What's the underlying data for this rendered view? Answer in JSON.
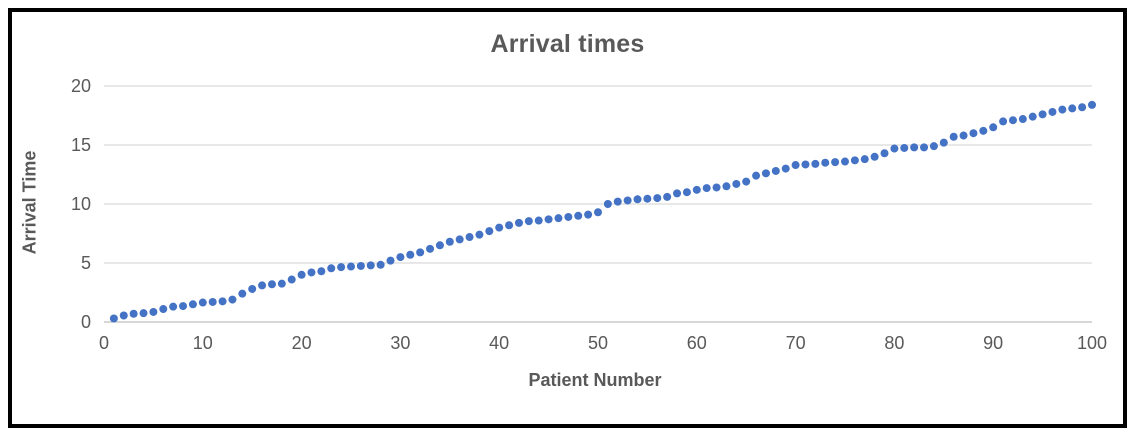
{
  "colors": {
    "title": "#595959",
    "axis_label": "#595959",
    "tick_label": "#595959",
    "gridline": "#D9D9D9",
    "baseline": "#BFBFBF",
    "frame_border": "#000000",
    "marker": "#4472C4",
    "background": "#FFFFFF"
  },
  "chart_data": {
    "type": "scatter",
    "title": "Arrival times",
    "xlabel": "Patient Number",
    "ylabel": "Arrival Time",
    "xlim": [
      0,
      100
    ],
    "ylim": [
      0,
      20
    ],
    "xticks": [
      0,
      10,
      20,
      30,
      40,
      50,
      60,
      70,
      80,
      90,
      100
    ],
    "yticks": [
      0,
      5,
      10,
      15,
      20
    ],
    "grid": "horizontal",
    "legend": "none",
    "marker_color": "#4472C4",
    "marker_size": 4,
    "x": [
      1,
      2,
      3,
      4,
      5,
      6,
      7,
      8,
      9,
      10,
      11,
      12,
      13,
      14,
      15,
      16,
      17,
      18,
      19,
      20,
      21,
      22,
      23,
      24,
      25,
      26,
      27,
      28,
      29,
      30,
      31,
      32,
      33,
      34,
      35,
      36,
      37,
      38,
      39,
      40,
      41,
      42,
      43,
      44,
      45,
      46,
      47,
      48,
      49,
      50,
      51,
      52,
      53,
      54,
      55,
      56,
      57,
      58,
      59,
      60,
      61,
      62,
      63,
      64,
      65,
      66,
      67,
      68,
      69,
      70,
      71,
      72,
      73,
      74,
      75,
      76,
      77,
      78,
      79,
      80,
      81,
      82,
      83,
      84,
      85,
      86,
      87,
      88,
      89,
      90,
      91,
      92,
      93,
      94,
      95,
      96,
      97,
      98,
      99,
      100
    ],
    "y": [
      0.3,
      0.55,
      0.7,
      0.75,
      0.85,
      1.1,
      1.3,
      1.35,
      1.5,
      1.65,
      1.7,
      1.75,
      1.9,
      2.4,
      2.8,
      3.1,
      3.2,
      3.25,
      3.6,
      4.0,
      4.2,
      4.3,
      4.55,
      4.65,
      4.7,
      4.75,
      4.8,
      4.85,
      5.2,
      5.5,
      5.7,
      5.9,
      6.2,
      6.5,
      6.8,
      7.0,
      7.2,
      7.4,
      7.7,
      8.0,
      8.2,
      8.4,
      8.55,
      8.6,
      8.7,
      8.8,
      8.9,
      9.0,
      9.1,
      9.3,
      10.0,
      10.2,
      10.3,
      10.4,
      10.45,
      10.5,
      10.6,
      10.9,
      11.0,
      11.2,
      11.35,
      11.4,
      11.5,
      11.7,
      11.9,
      12.4,
      12.6,
      12.8,
      13.0,
      13.3,
      13.35,
      13.4,
      13.5,
      13.55,
      13.6,
      13.7,
      13.8,
      14.0,
      14.3,
      14.7,
      14.75,
      14.8,
      14.8,
      14.9,
      15.2,
      15.7,
      15.8,
      16.0,
      16.2,
      16.5,
      17.0,
      17.1,
      17.2,
      17.4,
      17.6,
      17.8,
      18.0,
      18.1,
      18.2,
      18.4
    ]
  }
}
